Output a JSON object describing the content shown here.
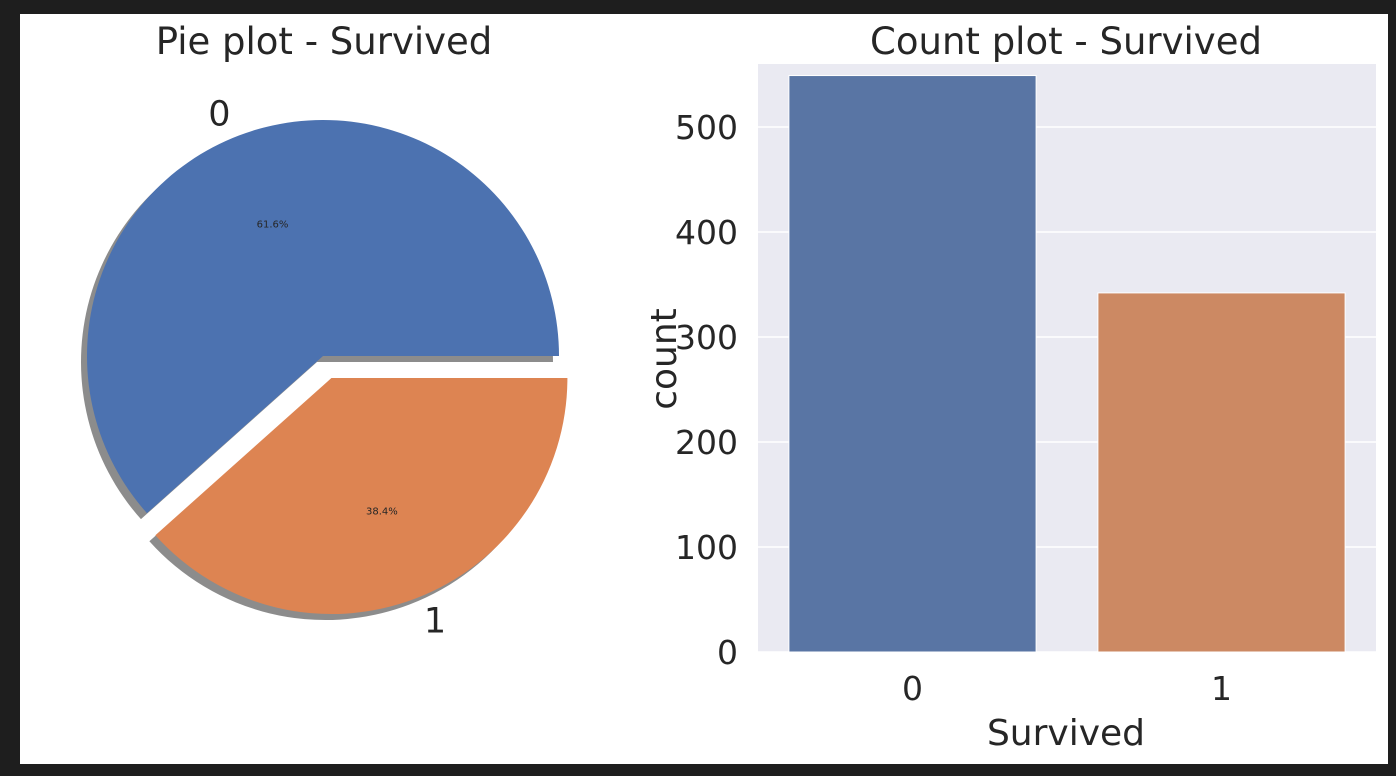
{
  "chart_data": [
    {
      "type": "pie",
      "title": "Pie plot - Survived",
      "labels": [
        "0",
        "1"
      ],
      "values": [
        61.6,
        38.4
      ],
      "autopct_labels": [
        "61.6%",
        "38.4%"
      ],
      "explode": [
        0,
        0.1
      ],
      "shadow": true,
      "colors": [
        "#4c72b0",
        "#dd8452"
      ]
    },
    {
      "type": "bar",
      "title": "Count plot - Survived",
      "categories": [
        "0",
        "1"
      ],
      "values": [
        549,
        342
      ],
      "xlabel": "Survived",
      "ylabel": "count",
      "ylim": [
        0,
        560
      ],
      "yticks": [
        0,
        100,
        200,
        300,
        400,
        500
      ],
      "grid": true,
      "background": "#eaeaf2",
      "colors": [
        "#5975a4",
        "#cc8963"
      ]
    }
  ]
}
